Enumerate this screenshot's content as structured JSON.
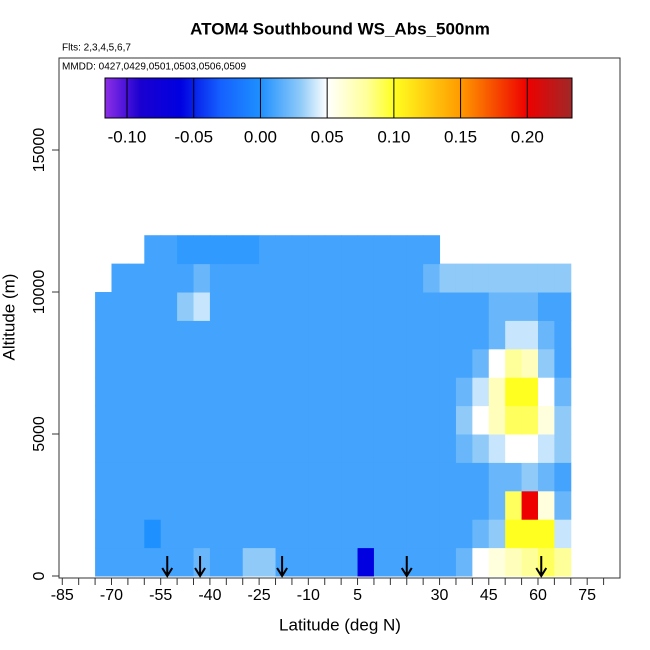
{
  "chart_data": {
    "type": "heatmap",
    "title": "ATOM4 Southbound WS_Abs_500nm",
    "subtitle": "Flts: 2,3,4,5,6,7",
    "annotation": "MMDD: 0427,0429,0501,0503,0506,0509",
    "xlabel": "Latitude (deg N)",
    "ylabel": "Altitude (m)",
    "xlim": [
      -86,
      85
    ],
    "ylim": [
      -70,
      18240
    ],
    "xticks": [
      -85,
      -70,
      -55,
      -40,
      -25,
      -10,
      5,
      30,
      45,
      60,
      75
    ],
    "xminor": [
      -80,
      -75,
      -65,
      -60,
      -50,
      -45,
      -35,
      -30,
      -20,
      -15,
      -5,
      0,
      10,
      15,
      20,
      25,
      35,
      40,
      50,
      55,
      65,
      70,
      80
    ],
    "yticks": [
      0,
      5000,
      10000,
      15000
    ],
    "x": [
      -72.5,
      -67.5,
      -62.5,
      -57.5,
      -52.5,
      -47.5,
      -42.5,
      -37.5,
      -32.5,
      -27.5,
      -22.5,
      -17.5,
      -12.5,
      -7.5,
      -2.5,
      2.5,
      7.5,
      12.5,
      17.5,
      22.5,
      27.5,
      32.5,
      37.5,
      42.5,
      47.5,
      52.5,
      57.5,
      62.5,
      67.5
    ],
    "y": [
      500,
      1500,
      2500,
      3500,
      4500,
      5500,
      6500,
      7500,
      8500,
      9500,
      10500,
      11500
    ],
    "z": [
      [
        0.01,
        0.01,
        0.01,
        0.01,
        0.01,
        0.01,
        0.02,
        0.01,
        0.01,
        0.03,
        0.03,
        0.01,
        0.01,
        0.01,
        0.01,
        0.01,
        -0.06,
        0.01,
        0.01,
        0.01,
        0.01,
        0.01,
        0.02,
        0.05,
        0.06,
        0.07,
        0.08,
        0.09,
        0.08
      ],
      [
        0.01,
        0.01,
        0.01,
        0.0,
        0.01,
        0.01,
        0.01,
        0.01,
        0.01,
        0.01,
        0.01,
        0.01,
        0.01,
        0.01,
        0.01,
        0.01,
        0.01,
        0.01,
        0.01,
        0.01,
        0.01,
        0.01,
        0.01,
        0.02,
        0.03,
        0.1,
        0.1,
        0.1,
        0.04
      ],
      [
        0.01,
        0.01,
        0.01,
        0.01,
        0.01,
        0.01,
        0.01,
        0.01,
        0.01,
        0.01,
        0.01,
        0.01,
        0.01,
        0.01,
        0.01,
        0.01,
        0.01,
        0.01,
        0.01,
        0.01,
        0.01,
        0.01,
        0.01,
        0.01,
        0.02,
        0.09,
        0.2,
        0.06,
        0.02
      ],
      [
        0.01,
        0.01,
        0.01,
        0.01,
        0.01,
        0.01,
        0.01,
        0.01,
        0.01,
        0.01,
        0.01,
        0.01,
        0.01,
        0.01,
        0.01,
        0.01,
        0.01,
        0.01,
        0.01,
        0.01,
        0.01,
        0.01,
        0.01,
        0.01,
        0.02,
        0.02,
        0.03,
        0.02,
        0.01
      ],
      [
        0.01,
        0.01,
        0.01,
        0.01,
        0.01,
        0.01,
        0.01,
        0.01,
        0.01,
        0.01,
        0.01,
        0.01,
        0.01,
        0.01,
        0.01,
        0.01,
        0.01,
        0.01,
        0.01,
        0.01,
        0.01,
        0.01,
        0.02,
        0.03,
        0.04,
        0.05,
        0.05,
        0.04,
        0.03
      ],
      [
        0.01,
        0.01,
        0.01,
        0.01,
        0.01,
        0.01,
        0.01,
        0.01,
        0.01,
        0.01,
        0.01,
        0.01,
        0.01,
        0.01,
        0.01,
        0.01,
        0.01,
        0.01,
        0.01,
        0.01,
        0.01,
        0.01,
        0.03,
        0.05,
        0.07,
        0.09,
        0.09,
        0.06,
        0.03
      ],
      [
        0.01,
        0.01,
        0.01,
        0.01,
        0.01,
        0.01,
        0.01,
        0.01,
        0.01,
        0.01,
        0.01,
        0.01,
        0.01,
        0.01,
        0.01,
        0.01,
        0.01,
        0.01,
        0.01,
        0.01,
        0.01,
        0.01,
        0.02,
        0.04,
        0.07,
        0.1,
        0.1,
        0.05,
        0.02
      ],
      [
        0.01,
        0.01,
        0.01,
        0.01,
        0.01,
        0.01,
        0.01,
        0.01,
        0.01,
        0.01,
        0.01,
        0.01,
        0.01,
        0.01,
        0.01,
        0.01,
        0.01,
        0.01,
        0.01,
        0.01,
        0.01,
        0.01,
        0.01,
        0.02,
        0.05,
        0.08,
        0.07,
        0.03,
        0.01
      ],
      [
        0.01,
        0.01,
        0.01,
        0.01,
        0.01,
        0.01,
        0.01,
        0.01,
        0.01,
        0.01,
        0.01,
        0.01,
        0.01,
        0.01,
        0.01,
        0.01,
        0.01,
        0.01,
        0.01,
        0.01,
        0.01,
        0.01,
        0.01,
        0.01,
        0.02,
        0.04,
        0.04,
        0.02,
        0.01
      ],
      [
        0.01,
        0.01,
        0.01,
        0.01,
        0.01,
        0.03,
        0.04,
        0.01,
        0.01,
        0.01,
        0.01,
        0.01,
        0.01,
        0.01,
        0.01,
        0.01,
        0.01,
        0.01,
        0.01,
        0.01,
        0.01,
        0.01,
        0.01,
        0.01,
        0.02,
        0.02,
        0.02,
        0.01,
        0.01
      ],
      [
        null,
        0.01,
        0.01,
        0.01,
        0.01,
        0.01,
        0.02,
        0.01,
        0.01,
        0.01,
        0.01,
        0.01,
        0.01,
        0.01,
        0.01,
        0.01,
        0.01,
        0.01,
        0.01,
        0.01,
        0.02,
        0.03,
        0.03,
        0.03,
        0.03,
        0.03,
        0.03,
        0.03,
        0.03
      ],
      [
        null,
        null,
        null,
        0.01,
        0.01,
        0.005,
        0.005,
        0.005,
        0.005,
        0.005,
        0.01,
        0.01,
        0.01,
        0.01,
        0.01,
        0.01,
        0.01,
        0.01,
        0.01,
        0.01,
        0.01,
        null,
        null,
        null,
        null,
        null,
        null,
        null,
        null
      ]
    ],
    "arrows": [
      -53,
      -43,
      -18,
      20,
      61
    ],
    "colorbar": {
      "lim": [
        -0.1165,
        0.2335
      ],
      "ticks": [
        {
          "value": -0.1,
          "label": "-0.10"
        },
        -0.05,
        {
          "value": 0,
          "label": "0.00"
        },
        0.05,
        {
          "value": 0.1,
          "label": "0.10"
        },
        0.15,
        {
          "value": 0.2,
          "label": "0.20"
        }
      ],
      "colorscale": [
        [
          -0.1165,
          "#8e2ee6"
        ],
        [
          -0.09,
          "#1a00d0"
        ],
        [
          -0.06,
          "#0000e0"
        ],
        [
          -0.03,
          "#1560ff"
        ],
        [
          0,
          "#1e90ff"
        ],
        [
          0.03,
          "#8fcaf8"
        ],
        [
          0.05,
          "#ffffff"
        ],
        [
          0.08,
          "#ffff99"
        ],
        [
          0.1,
          "#ffff20"
        ],
        [
          0.15,
          "#ff9a00"
        ],
        [
          0.2,
          "#ee0000"
        ],
        [
          0.2335,
          "#a02828"
        ]
      ]
    }
  }
}
